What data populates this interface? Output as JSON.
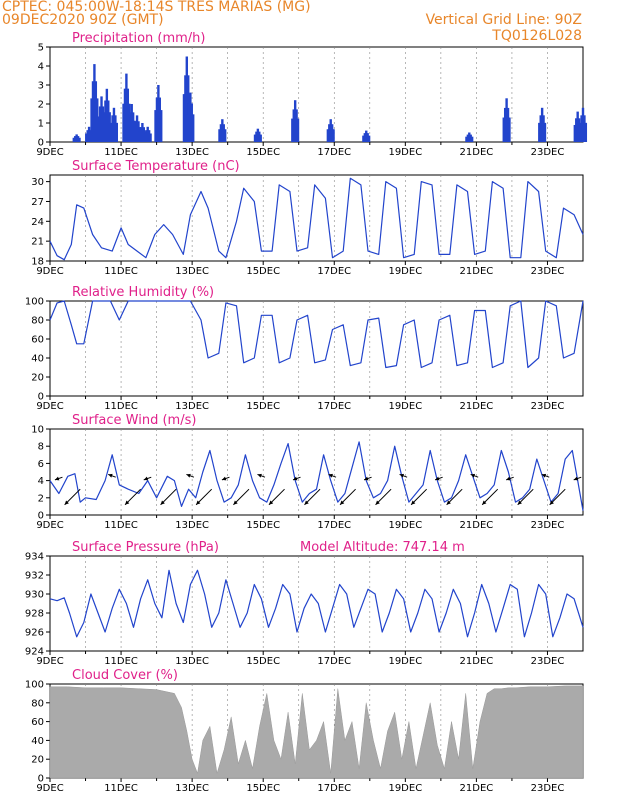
{
  "header": {
    "line1": "CPTEC:  045:00W-18:14S  TRES MARIAS (MG)",
    "line2": "09DEC2020 90Z (GMT)",
    "vgrid": "Vertical Grid Line: 90Z",
    "code": "TQ0126L028"
  },
  "colors": {
    "line": "#2244cc",
    "bar": "#2244cc",
    "cloud": "#aaaaaa",
    "title": "#e0218a",
    "header": "#e8862a"
  },
  "chart_data": [
    {
      "type": "bar",
      "title": "Precipitation (mm/h)",
      "ylim": [
        0,
        5
      ],
      "yticks": [
        0,
        1,
        2,
        3,
        4,
        5
      ],
      "xticks": [
        "9DEC",
        "11DEC",
        "13DEC",
        "15DEC",
        "17DEC",
        "19DEC",
        "21DEC",
        "23DEC"
      ],
      "xlim_days": [
        9,
        24
      ],
      "events": [
        {
          "day": 9.75,
          "v": 0.4
        },
        {
          "day": 10.1,
          "v": 0.8
        },
        {
          "day": 10.25,
          "v": 4.1
        },
        {
          "day": 10.45,
          "v": 2.4
        },
        {
          "day": 10.6,
          "v": 2.8
        },
        {
          "day": 10.8,
          "v": 1.8
        },
        {
          "day": 11.15,
          "v": 3.6
        },
        {
          "day": 11.3,
          "v": 2.0
        },
        {
          "day": 11.45,
          "v": 1.4
        },
        {
          "day": 11.6,
          "v": 1.0
        },
        {
          "day": 11.75,
          "v": 0.8
        },
        {
          "day": 12.05,
          "v": 3.0
        },
        {
          "day": 12.85,
          "v": 4.5
        },
        {
          "day": 12.95,
          "v": 2.6
        },
        {
          "day": 13.85,
          "v": 1.2
        },
        {
          "day": 14.85,
          "v": 0.7
        },
        {
          "day": 15.9,
          "v": 2.2
        },
        {
          "day": 16.9,
          "v": 1.2
        },
        {
          "day": 17.9,
          "v": 0.6
        },
        {
          "day": 20.8,
          "v": 0.5
        },
        {
          "day": 21.85,
          "v": 2.3
        },
        {
          "day": 22.85,
          "v": 1.8
        },
        {
          "day": 23.85,
          "v": 1.6
        },
        {
          "day": 24.0,
          "v": 1.8
        }
      ]
    },
    {
      "type": "line",
      "title": "Surface Temperature (nC)",
      "ylim": [
        18,
        31
      ],
      "yticks": [
        18,
        21,
        24,
        27,
        30
      ],
      "xticks": [
        "9DEC",
        "11DEC",
        "13DEC",
        "15DEC",
        "17DEC",
        "19DEC",
        "21DEC",
        "23DEC"
      ],
      "xlim_days": [
        9,
        24
      ],
      "days": [
        9.0,
        9.2,
        9.4,
        9.6,
        9.75,
        9.95,
        10.2,
        10.45,
        10.75,
        11.0,
        11.2,
        11.45,
        11.7,
        11.95,
        12.2,
        12.45,
        12.75,
        12.95,
        13.25,
        13.45,
        13.75,
        13.95,
        14.25,
        14.45,
        14.75,
        14.95,
        15.25,
        15.45,
        15.75,
        15.95,
        16.25,
        16.45,
        16.75,
        16.95,
        17.25,
        17.45,
        17.75,
        17.95,
        18.25,
        18.45,
        18.75,
        18.95,
        19.25,
        19.45,
        19.75,
        19.95,
        20.25,
        20.45,
        20.75,
        20.95,
        21.25,
        21.45,
        21.75,
        21.95,
        22.25,
        22.45,
        22.75,
        22.95,
        23.25,
        23.45,
        23.75,
        24.0
      ],
      "values": [
        21.0,
        18.8,
        18.2,
        20.5,
        26.5,
        26.0,
        22.0,
        20.0,
        19.5,
        23.0,
        20.5,
        19.5,
        18.5,
        22.0,
        23.5,
        22.0,
        19.0,
        25.0,
        28.5,
        26.0,
        19.5,
        18.5,
        24.0,
        29.0,
        27.0,
        19.5,
        19.5,
        29.5,
        28.5,
        19.5,
        20.0,
        29.5,
        27.5,
        18.5,
        19.5,
        30.5,
        29.5,
        19.5,
        19.0,
        30.0,
        29.0,
        18.5,
        19.0,
        30.0,
        29.5,
        19.0,
        19.0,
        29.5,
        28.5,
        19.0,
        19.5,
        30.0,
        29.0,
        18.5,
        18.5,
        30.0,
        28.5,
        19.5,
        18.5,
        26.0,
        25.0,
        22.0
      ]
    },
    {
      "type": "line",
      "title": "Relative Humidity (%)",
      "ylim": [
        0,
        100
      ],
      "yticks": [
        0,
        20,
        40,
        60,
        80,
        100
      ],
      "xticks": [
        "9DEC",
        "11DEC",
        "13DEC",
        "15DEC",
        "17DEC",
        "19DEC",
        "21DEC",
        "23DEC"
      ],
      "xlim_days": [
        9,
        24
      ],
      "days": [
        9.0,
        9.2,
        9.4,
        9.6,
        9.75,
        9.95,
        10.2,
        10.45,
        10.7,
        10.95,
        11.2,
        11.45,
        11.7,
        11.95,
        12.25,
        12.45,
        12.75,
        12.95,
        13.25,
        13.45,
        13.75,
        13.95,
        14.25,
        14.45,
        14.75,
        14.95,
        15.25,
        15.45,
        15.75,
        15.95,
        16.25,
        16.45,
        16.75,
        16.95,
        17.25,
        17.45,
        17.75,
        17.95,
        18.25,
        18.45,
        18.75,
        18.95,
        19.25,
        19.45,
        19.75,
        19.95,
        20.25,
        20.45,
        20.75,
        20.95,
        21.25,
        21.45,
        21.75,
        21.95,
        22.25,
        22.45,
        22.75,
        22.95,
        23.25,
        23.45,
        23.75,
        24.0
      ],
      "values": [
        80,
        98,
        100,
        75,
        55,
        55,
        100,
        100,
        100,
        80,
        100,
        100,
        100,
        100,
        100,
        100,
        100,
        100,
        80,
        40,
        45,
        98,
        95,
        35,
        40,
        85,
        85,
        35,
        40,
        80,
        85,
        35,
        38,
        70,
        75,
        32,
        35,
        80,
        82,
        30,
        32,
        75,
        80,
        30,
        35,
        80,
        85,
        32,
        35,
        90,
        90,
        30,
        35,
        95,
        100,
        30,
        40,
        100,
        95,
        40,
        45,
        100
      ]
    },
    {
      "type": "line",
      "title": "Surface Wind (m/s)",
      "ylim": [
        0,
        10
      ],
      "yticks": [
        0,
        2,
        4,
        6,
        8,
        10
      ],
      "xticks": [
        "9DEC",
        "11DEC",
        "13DEC",
        "15DEC",
        "17DEC",
        "19DEC",
        "21DEC",
        "23DEC"
      ],
      "xlim_days": [
        9,
        24
      ],
      "days": [
        9.0,
        9.25,
        9.5,
        9.7,
        9.85,
        10.0,
        10.3,
        10.55,
        10.75,
        10.95,
        11.2,
        11.5,
        11.75,
        12.0,
        12.3,
        12.5,
        12.7,
        12.9,
        13.1,
        13.3,
        13.5,
        13.7,
        13.9,
        14.1,
        14.3,
        14.5,
        14.7,
        14.9,
        15.1,
        15.3,
        15.5,
        15.7,
        15.9,
        16.1,
        16.3,
        16.5,
        16.7,
        16.9,
        17.1,
        17.3,
        17.5,
        17.7,
        17.9,
        18.1,
        18.3,
        18.5,
        18.7,
        18.9,
        19.1,
        19.3,
        19.5,
        19.7,
        19.9,
        20.1,
        20.3,
        20.5,
        20.7,
        20.9,
        21.1,
        21.3,
        21.5,
        21.7,
        21.9,
        22.1,
        22.3,
        22.5,
        22.7,
        22.9,
        23.1,
        23.3,
        23.5,
        23.7,
        23.85,
        24.0
      ],
      "values": [
        4.0,
        2.5,
        4.5,
        4.8,
        1.5,
        2.0,
        1.8,
        4.0,
        7.0,
        3.5,
        3.0,
        2.5,
        4.0,
        2.0,
        4.5,
        4.0,
        1.0,
        3.0,
        2.0,
        5.0,
        7.5,
        4.0,
        1.5,
        2.0,
        3.5,
        7.0,
        4.0,
        2.0,
        1.5,
        3.5,
        6.0,
        8.3,
        4.0,
        1.5,
        2.5,
        3.0,
        7.0,
        4.0,
        1.5,
        2.5,
        5.5,
        8.5,
        4.0,
        2.0,
        2.5,
        4.0,
        8.0,
        4.5,
        1.5,
        2.5,
        3.5,
        7.5,
        4.0,
        1.5,
        2.0,
        4.0,
        7.0,
        4.5,
        2.0,
        2.5,
        3.5,
        7.5,
        5.0,
        1.5,
        2.0,
        3.0,
        6.5,
        4.0,
        1.5,
        2.5,
        6.5,
        7.5,
        4.0,
        0.5
      ]
    },
    {
      "type": "line",
      "title": "Surface Pressure (hPa)",
      "annotation": "Model Altitude: 747.14 m",
      "ylim": [
        924,
        934
      ],
      "yticks": [
        924,
        926,
        928,
        930,
        932,
        934
      ],
      "xticks": [
        "9DEC",
        "11DEC",
        "13DEC",
        "15DEC",
        "17DEC",
        "19DEC",
        "21DEC",
        "23DEC"
      ],
      "xlim_days": [
        9,
        24
      ],
      "days": [
        9.0,
        9.2,
        9.4,
        9.55,
        9.75,
        9.95,
        10.15,
        10.35,
        10.55,
        10.75,
        10.95,
        11.15,
        11.35,
        11.55,
        11.75,
        11.95,
        12.15,
        12.35,
        12.55,
        12.75,
        12.95,
        13.15,
        13.35,
        13.55,
        13.75,
        13.95,
        14.15,
        14.35,
        14.55,
        14.75,
        14.95,
        15.15,
        15.35,
        15.55,
        15.75,
        15.95,
        16.15,
        16.35,
        16.55,
        16.75,
        16.95,
        17.15,
        17.35,
        17.55,
        17.75,
        17.95,
        18.15,
        18.35,
        18.55,
        18.75,
        18.95,
        19.15,
        19.35,
        19.55,
        19.75,
        19.95,
        20.15,
        20.35,
        20.55,
        20.75,
        20.95,
        21.15,
        21.35,
        21.55,
        21.75,
        21.95,
        22.15,
        22.35,
        22.55,
        22.75,
        22.95,
        23.15,
        23.35,
        23.55,
        23.75,
        24.0
      ],
      "values": [
        929.5,
        929.3,
        929.6,
        928.0,
        925.5,
        927.0,
        930.0,
        928.0,
        926.0,
        928.5,
        930.5,
        929.0,
        926.5,
        929.5,
        931.5,
        929.0,
        927.5,
        932.5,
        929.0,
        927.0,
        931.0,
        932.5,
        930.0,
        926.5,
        928.0,
        931.5,
        929.0,
        926.5,
        928.0,
        931.0,
        929.5,
        926.5,
        928.5,
        931.0,
        930.0,
        926.0,
        928.5,
        930.0,
        929.0,
        926.0,
        928.5,
        931.0,
        930.0,
        926.5,
        928.5,
        930.5,
        930.0,
        926.0,
        928.0,
        930.5,
        929.5,
        926.0,
        928.0,
        930.5,
        929.5,
        926.0,
        928.0,
        930.5,
        929.0,
        925.5,
        928.0,
        931.0,
        929.0,
        926.0,
        928.5,
        931.0,
        930.5,
        925.5,
        928.0,
        931.0,
        930.0,
        925.5,
        927.5,
        930.0,
        929.5,
        926.5
      ]
    },
    {
      "type": "area",
      "title": "Cloud Cover (%)",
      "ylim": [
        0,
        100
      ],
      "yticks": [
        0,
        20,
        40,
        60,
        80,
        100
      ],
      "xticks": [
        "9DEC",
        "11DEC",
        "13DEC",
        "15DEC",
        "17DEC",
        "19DEC",
        "21DEC",
        "23DEC"
      ],
      "xlim_days": [
        9,
        24
      ],
      "days": [
        9.0,
        9.5,
        10.0,
        10.5,
        11.0,
        11.5,
        12.0,
        12.5,
        12.7,
        12.85,
        13.0,
        13.15,
        13.3,
        13.5,
        13.7,
        13.9,
        14.1,
        14.3,
        14.5,
        14.7,
        14.9,
        15.1,
        15.3,
        15.5,
        15.7,
        15.9,
        16.1,
        16.3,
        16.5,
        16.7,
        16.9,
        17.1,
        17.3,
        17.5,
        17.7,
        17.9,
        18.1,
        18.3,
        18.5,
        18.7,
        18.9,
        19.1,
        19.3,
        19.5,
        19.7,
        19.9,
        20.1,
        20.3,
        20.5,
        20.7,
        20.9,
        21.1,
        21.3,
        21.5,
        21.7,
        21.9,
        22.1,
        22.5,
        23.0,
        23.5,
        24.0
      ],
      "values": [
        97,
        97,
        96,
        96,
        96,
        95,
        94,
        90,
        75,
        50,
        20,
        5,
        40,
        55,
        5,
        30,
        65,
        15,
        40,
        10,
        55,
        90,
        40,
        20,
        70,
        15,
        90,
        30,
        40,
        60,
        5,
        95,
        40,
        60,
        10,
        80,
        40,
        10,
        50,
        70,
        20,
        60,
        10,
        45,
        80,
        35,
        10,
        60,
        20,
        90,
        10,
        60,
        90,
        95,
        95,
        96,
        96,
        97,
        97,
        98,
        98
      ]
    }
  ]
}
